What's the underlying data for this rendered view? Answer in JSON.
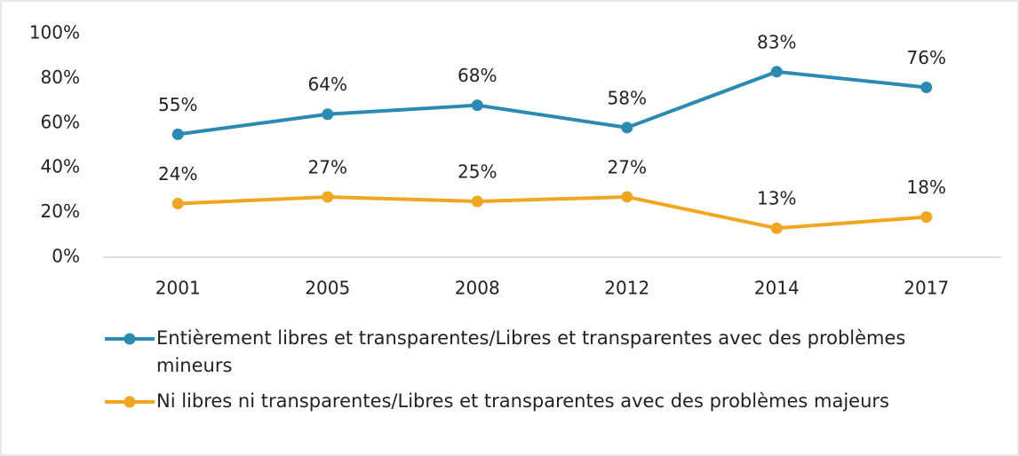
{
  "chart_data": {
    "type": "line",
    "categories": [
      "2001",
      "2005",
      "2008",
      "2012",
      "2014",
      "2017"
    ],
    "series": [
      {
        "name": "Entièrement libres et transparentes/Libres et transparentes avec des problèmes mineurs",
        "color": "#2b8ab1",
        "values": [
          55,
          64,
          68,
          58,
          83,
          76
        ],
        "value_labels": [
          "55%",
          "64%",
          "68%",
          "58%",
          "83%",
          "76%"
        ]
      },
      {
        "name": "Ni libres ni transparentes/Libres et transparentes avec des problèmes majeurs",
        "color": "#f0a61e",
        "values": [
          24,
          27,
          25,
          27,
          13,
          18
        ],
        "value_labels": [
          "24%",
          "27%",
          "25%",
          "27%",
          "13%",
          "18%"
        ]
      }
    ],
    "ylim": [
      0,
      100
    ],
    "yticks": [
      {
        "value": 0,
        "label": "0%"
      },
      {
        "value": 20,
        "label": "20%"
      },
      {
        "value": 40,
        "label": "40%"
      },
      {
        "value": 60,
        "label": "60%"
      },
      {
        "value": 80,
        "label": "80%"
      },
      {
        "value": 100,
        "label": "100%"
      }
    ],
    "grid": false
  }
}
